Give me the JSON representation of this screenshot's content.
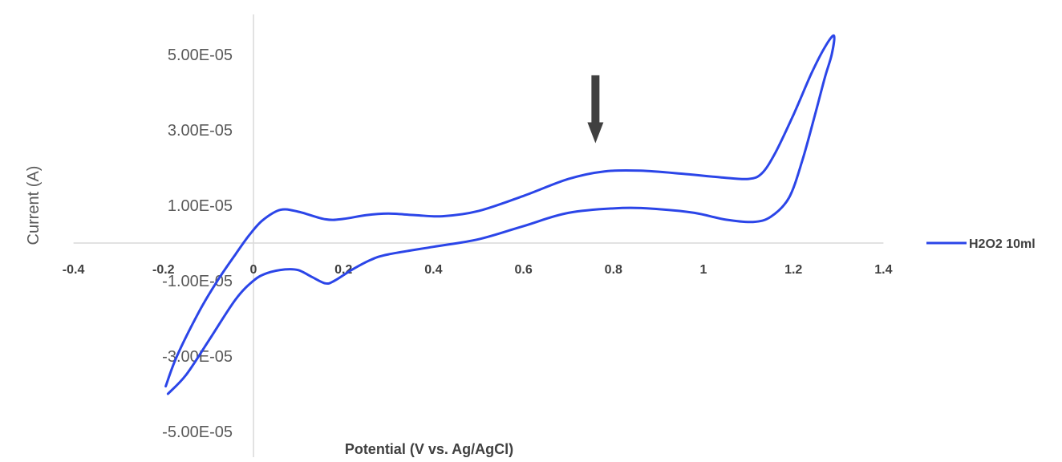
{
  "chart_data": {
    "type": "line",
    "title": "",
    "xlabel": "Potential (V vs. Ag/AgCl)",
    "ylabel": "Current (A)",
    "xlim": [
      -0.4,
      1.4
    ],
    "ylim": [
      -5e-05,
      6.5e-05
    ],
    "x_ticks": [
      "-0.4",
      "-0.2",
      "0",
      "0.2",
      "0.4",
      "0.6",
      "0.8",
      "1",
      "1.2",
      "1.4"
    ],
    "x_tick_values": [
      -0.4,
      -0.2,
      0,
      0.2,
      0.4,
      0.6,
      0.8,
      1.0,
      1.2,
      1.4
    ],
    "y_ticks": [
      "5.00E-05",
      "3.00E-05",
      "1.00E-05",
      "-1.00E-05",
      "-3.00E-05",
      "-5.00E-05"
    ],
    "y_tick_values": [
      5e-05,
      3e-05,
      1e-05,
      -1e-05,
      -3e-05,
      -5e-05
    ],
    "grid": false,
    "legend": "right",
    "series": [
      {
        "name": "H2O2 10ml",
        "color": "#2b45e8",
        "x": [
          -0.195,
          -0.17,
          -0.12,
          -0.08,
          -0.04,
          -0.01,
          0.02,
          0.06,
          0.1,
          0.16,
          0.2,
          0.25,
          0.3,
          0.36,
          0.42,
          0.5,
          0.6,
          0.7,
          0.78,
          0.86,
          0.96,
          1.04,
          1.1,
          1.13,
          1.16,
          1.2,
          1.24,
          1.27,
          1.29,
          1.285,
          1.27,
          1.25,
          1.22,
          1.19,
          1.15,
          1.11,
          1.05,
          0.98,
          0.9,
          0.82,
          0.7,
          0.6,
          0.5,
          0.4,
          0.3,
          0.26,
          0.22,
          0.18,
          0.16,
          0.13,
          0.1,
          0.07,
          0.03,
          0.0,
          -0.04,
          -0.1,
          -0.15,
          -0.19
        ],
        "y": [
          -3.8e-05,
          -3e-05,
          -1.8e-05,
          -1e-05,
          -3e-06,
          2e-06,
          6e-06,
          8.8e-06,
          8.3e-06,
          6.3e-06,
          6.4e-06,
          7.4e-06,
          7.8e-06,
          7.4e-06,
          7.1e-06,
          8.5e-06,
          1.25e-05,
          1.7e-05,
          1.9e-05,
          1.92e-05,
          1.83e-05,
          1.74e-05,
          1.7e-05,
          1.85e-05,
          2.4e-05,
          3.4e-05,
          4.5e-05,
          5.2e-05,
          5.5e-05,
          5e-05,
          4.4e-05,
          3.5e-05,
          2.2e-05,
          1.2e-05,
          7e-06,
          5.6e-06,
          6.2e-06,
          8e-06,
          9e-06,
          9.3e-06,
          8e-06,
          4.5e-06,
          1e-06,
          -1e-06,
          -3e-06,
          -4.5e-06,
          -7e-06,
          -1e-05,
          -1.07e-05,
          -9e-06,
          -7.2e-06,
          -7e-06,
          -8e-06,
          -1e-05,
          -1.5e-05,
          -2.6e-05,
          -3.5e-05,
          -4e-05
        ]
      }
    ]
  },
  "annotation": {
    "type": "down-arrow",
    "x": 0.76,
    "y_top": 4.45e-05,
    "y_tip": 2.65e-05,
    "color": "#404040"
  }
}
